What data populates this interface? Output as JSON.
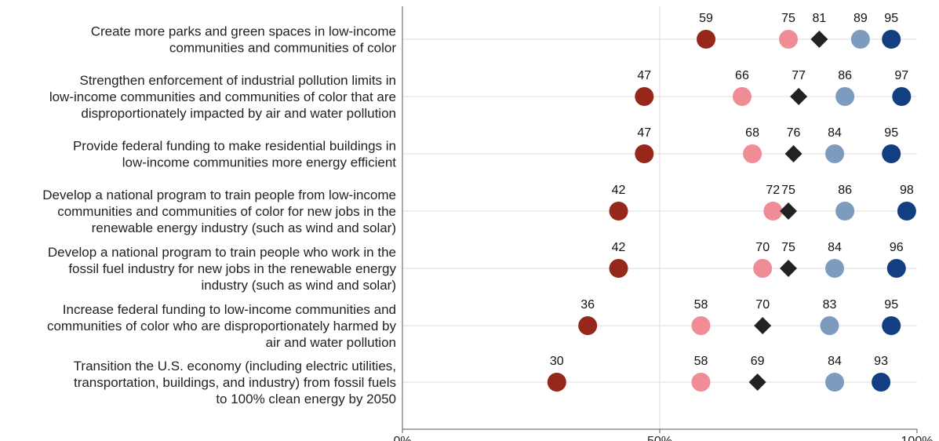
{
  "chart_data": {
    "type": "dot",
    "xlim": [
      0,
      100
    ],
    "x_ticks": [
      {
        "value": 0,
        "label": "0%"
      },
      {
        "value": 50,
        "label": "50%"
      },
      {
        "value": 100,
        "label": "100%"
      }
    ],
    "grid": "vertical at 50%",
    "legend": "none",
    "categories": [
      [
        "Create more parks and green spaces in low-income",
        "communities and communities of color"
      ],
      [
        "Strengthen enforcement of industrial pollution limits in",
        "low-income communities and communities of color that are",
        "disproportionately impacted by air and water pollution"
      ],
      [
        "Provide federal funding to make residential buildings in",
        "low-income communities more energy efficient"
      ],
      [
        "Develop a national program to train people from low-income",
        "communities and communities of color for new jobs in the",
        "renewable energy industry (such as wind and solar)"
      ],
      [
        "Develop a national program to train people who work in the",
        "fossil fuel industry for new jobs in the renewable energy",
        "industry (such as wind and solar)"
      ],
      [
        "Increase federal funding to low-income communities and",
        "communities of color who are disproportionately harmed by",
        "air and water pollution"
      ],
      [
        "Transition the U.S. economy (including electric utilities,",
        "transportation, buildings, and industry) from fossil fuels",
        "to 100% clean energy by 2050"
      ]
    ],
    "series": [
      {
        "shape": "circle",
        "color": "#96281b",
        "values": [
          59,
          47,
          47,
          42,
          42,
          36,
          30
        ]
      },
      {
        "shape": "circle",
        "color": "#f08c96",
        "values": [
          75,
          66,
          68,
          72,
          70,
          58,
          58
        ]
      },
      {
        "shape": "diamond",
        "color": "#222222",
        "values": [
          81,
          77,
          76,
          75,
          75,
          70,
          69
        ]
      },
      {
        "shape": "circle",
        "color": "#7d9bbe",
        "values": [
          89,
          86,
          84,
          86,
          84,
          83,
          84
        ]
      },
      {
        "shape": "circle",
        "color": "#123f82",
        "values": [
          95,
          97,
          95,
          98,
          96,
          95,
          93
        ]
      }
    ]
  }
}
